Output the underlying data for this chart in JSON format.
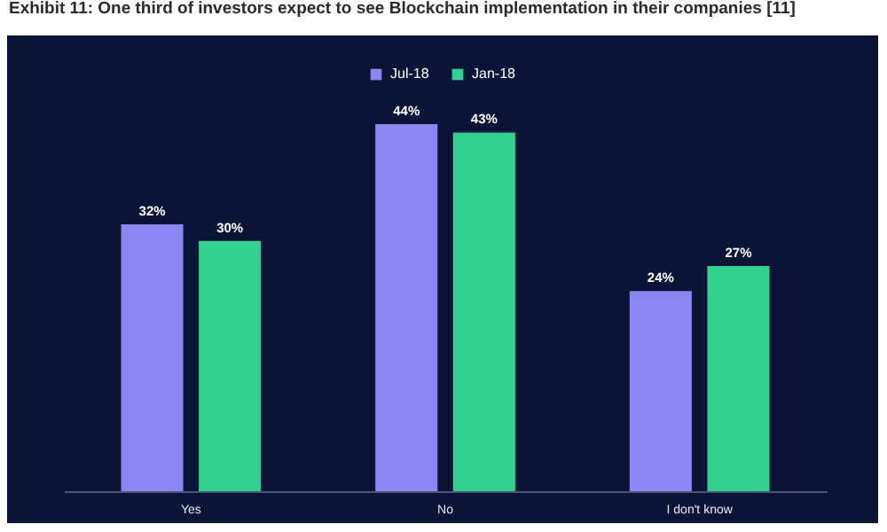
{
  "chart_data": {
    "type": "bar",
    "title": "Exhibit 11: One third of investors expect to see Blockchain implementation in their companies [11]",
    "categories": [
      "Yes",
      "No",
      "I don't know"
    ],
    "series": [
      {
        "name": "Jul-18",
        "color": "#8b86f2",
        "values": [
          32,
          44,
          24
        ],
        "value_labels": [
          "32%",
          "44%",
          "24%"
        ]
      },
      {
        "name": "Jan-18",
        "color": "#33d18f",
        "values": [
          30,
          43,
          27
        ],
        "value_labels": [
          "30%",
          "43%",
          "27%"
        ]
      }
    ],
    "legend": "top",
    "grid": false
  }
}
